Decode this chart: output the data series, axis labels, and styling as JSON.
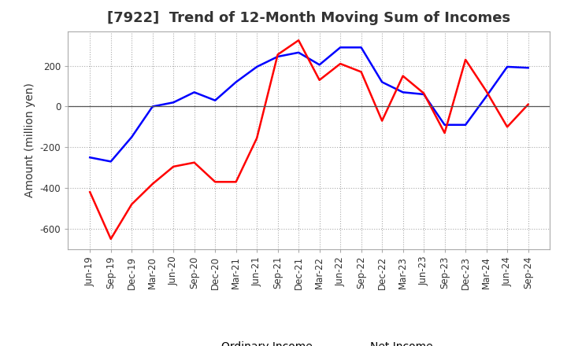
{
  "title": "[7922]  Trend of 12-Month Moving Sum of Incomes",
  "ylabel": "Amount (million yen)",
  "x_labels": [
    "Jun-19",
    "Sep-19",
    "Dec-19",
    "Mar-20",
    "Jun-20",
    "Sep-20",
    "Dec-20",
    "Mar-21",
    "Jun-21",
    "Sep-21",
    "Dec-21",
    "Mar-22",
    "Jun-22",
    "Sep-22",
    "Dec-22",
    "Mar-23",
    "Jun-23",
    "Sep-23",
    "Dec-23",
    "Mar-24",
    "Jun-24",
    "Sep-24"
  ],
  "ordinary_income": [
    -250,
    -270,
    -150,
    0,
    20,
    70,
    30,
    120,
    195,
    245,
    265,
    205,
    290,
    290,
    120,
    70,
    60,
    -90,
    -90,
    50,
    195,
    190
  ],
  "net_income": [
    -420,
    -650,
    -480,
    -380,
    -295,
    -275,
    -370,
    -370,
    -155,
    255,
    325,
    130,
    210,
    170,
    -70,
    150,
    65,
    -130,
    230,
    75,
    -100,
    10
  ],
  "ordinary_color": "#0000ff",
  "net_color": "#ff0000",
  "ylim": [
    -700,
    370
  ],
  "yticks": [
    -600,
    -400,
    -200,
    0,
    200
  ],
  "background_color": "#ffffff",
  "grid_color": "#aaaaaa",
  "title_fontsize": 13,
  "label_fontsize": 10,
  "tick_fontsize": 8.5
}
